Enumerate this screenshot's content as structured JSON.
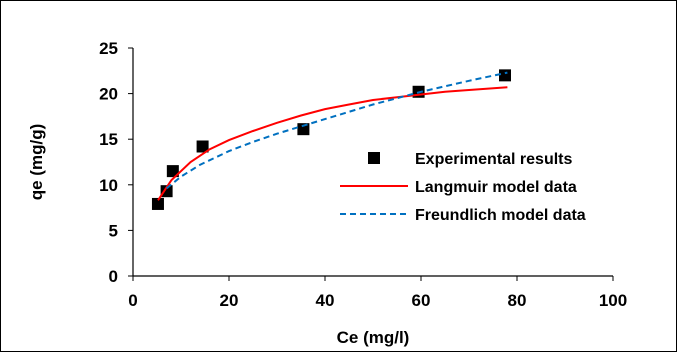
{
  "chart_data": {
    "type": "scatter",
    "xlabel": "Ce (mg/l)",
    "ylabel": "qe (mg/g)",
    "xlim": [
      0,
      100
    ],
    "ylim": [
      0,
      25
    ],
    "xticks": [
      0,
      20,
      40,
      60,
      80,
      100
    ],
    "yticks": [
      0,
      5,
      10,
      15,
      20,
      25
    ],
    "grid": false,
    "legend_position": "right",
    "series": [
      {
        "name": "Experimental results",
        "kind": "scatter",
        "color": "#000000",
        "x": [
          5.2,
          7.0,
          8.3,
          14.5,
          35.5,
          59.5,
          77.5
        ],
        "y": [
          7.9,
          9.3,
          11.5,
          14.2,
          16.1,
          20.2,
          22.0
        ]
      },
      {
        "name": "Langmuir model data",
        "kind": "line",
        "color": "#ff0000",
        "x": [
          5.2,
          8,
          12,
          16,
          20,
          25,
          30,
          35,
          40,
          45,
          50,
          55,
          60,
          65,
          70,
          78
        ],
        "y": [
          8.3,
          10.5,
          12.5,
          13.9,
          14.9,
          15.9,
          16.8,
          17.6,
          18.3,
          18.8,
          19.3,
          19.6,
          19.9,
          20.2,
          20.4,
          20.7
        ]
      },
      {
        "name": "Freundlich model data",
        "kind": "dashed-line",
        "color": "#0070c0",
        "x": [
          7,
          10,
          14,
          20,
          25,
          30,
          35,
          40,
          45,
          50,
          55,
          60,
          65,
          70,
          78
        ],
        "y": [
          9.6,
          10.9,
          12.2,
          13.7,
          14.7,
          15.6,
          16.4,
          17.2,
          18.0,
          18.8,
          19.5,
          20.2,
          20.8,
          21.4,
          22.3
        ]
      }
    ]
  }
}
